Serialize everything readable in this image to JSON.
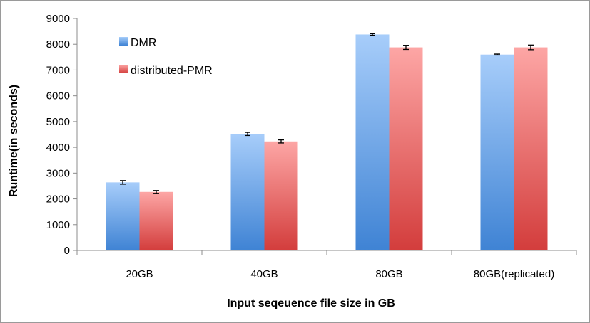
{
  "chart_data": {
    "type": "bar",
    "title": "",
    "xlabel": "Input seqeuence file size in GB",
    "ylabel": "Runtime(in seconds)",
    "ylim": [
      0,
      9000
    ],
    "yticks": [
      0,
      1000,
      2000,
      3000,
      4000,
      5000,
      6000,
      7000,
      8000,
      9000
    ],
    "categories": [
      "20GB",
      "40GB",
      "80GB",
      "80GB(replicated)"
    ],
    "series": [
      {
        "name": "DMR",
        "values": [
          2640,
          4520,
          8380,
          7600
        ],
        "errors": [
          70,
          60,
          30,
          20
        ],
        "color_top": "#a7cdfa",
        "color_bottom": "#3f83d4"
      },
      {
        "name": "distributed-PMR",
        "values": [
          2270,
          4230,
          7880,
          7880
        ],
        "errors": [
          55,
          60,
          80,
          90
        ],
        "color_top": "#fda6a5",
        "color_bottom": "#d33d3c"
      }
    ],
    "grid": false,
    "legend_position": "top-left"
  }
}
